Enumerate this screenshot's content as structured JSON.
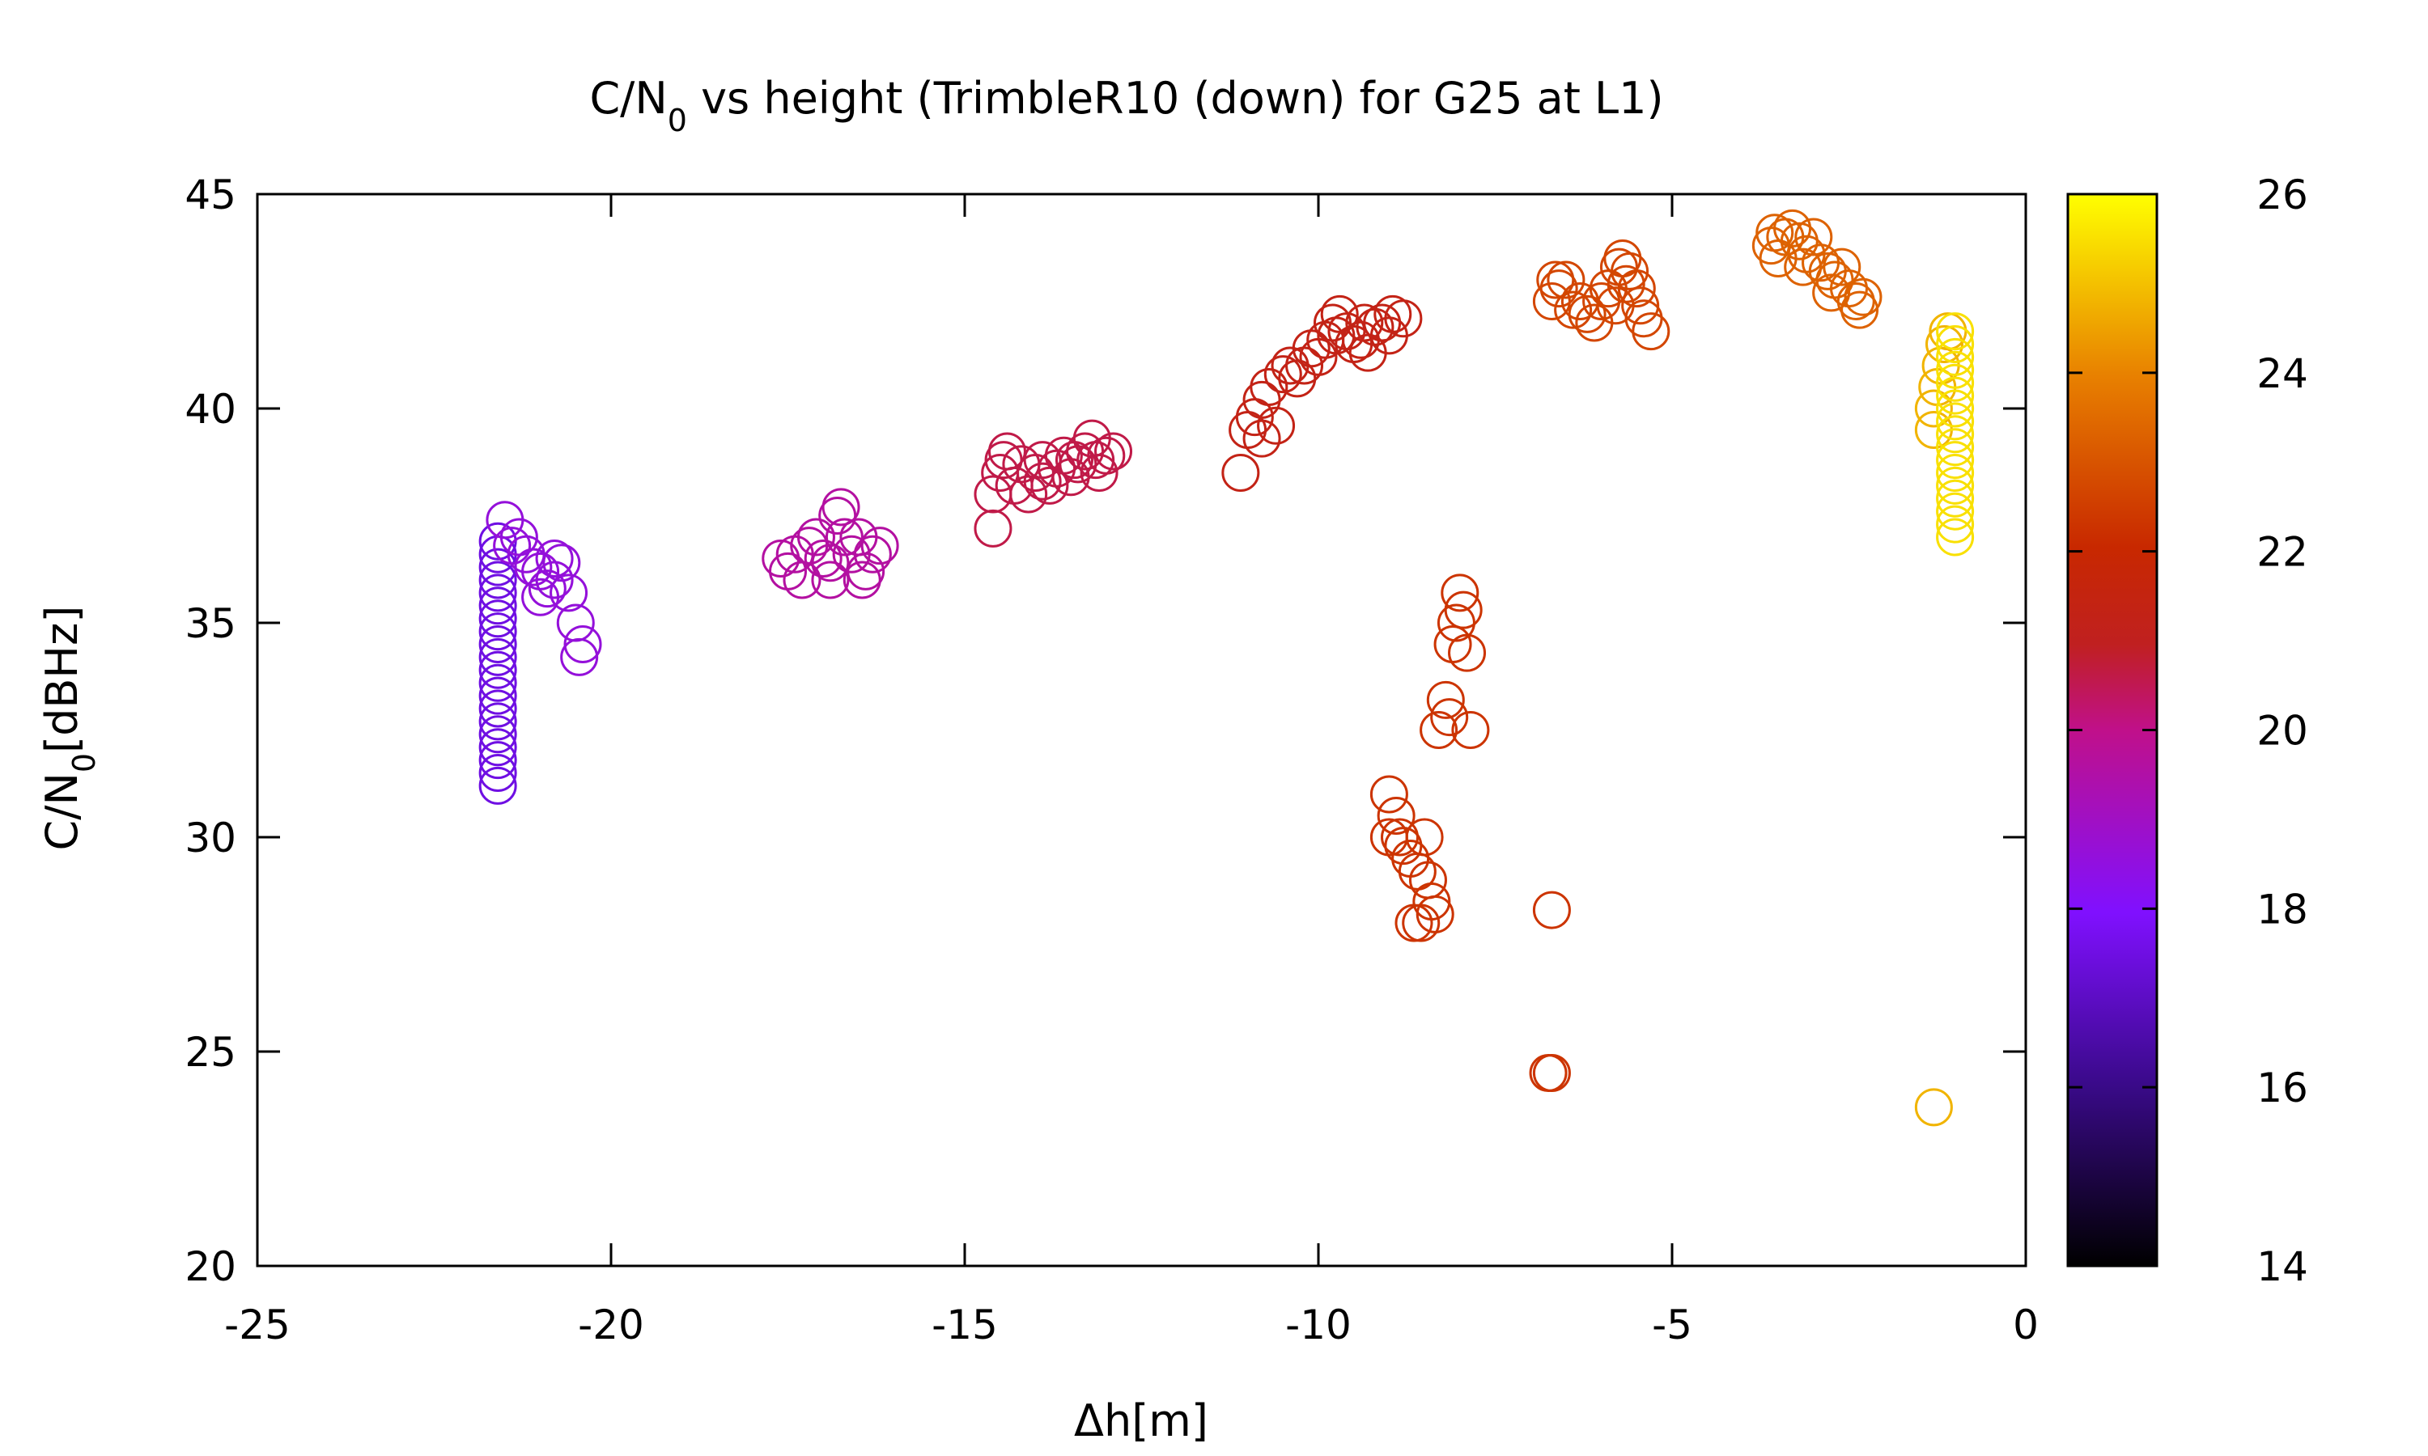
{
  "chart_data": {
    "type": "scatter",
    "title": {
      "main": "C/N",
      "sub": "0",
      "rest": " vs height (TrimbleR10 (down) for G25 at L1)"
    },
    "xlabel": "Δh[m]",
    "ylabel": {
      "main": "C/N",
      "sub": "0",
      "rest": "[dBHz]"
    },
    "xlim": [
      -25,
      0
    ],
    "ylim": [
      20,
      45
    ],
    "xticks": [
      -25,
      -20,
      -15,
      -10,
      -5,
      0
    ],
    "yticks": [
      20,
      25,
      30,
      35,
      40,
      45
    ],
    "colorbar": {
      "range": [
        14,
        26
      ],
      "ticks": [
        14,
        16,
        18,
        20,
        22,
        24,
        26
      ],
      "palette": "black-purple-red-orange-yellow"
    },
    "marker": "open-circle",
    "grid": false,
    "clusters": [
      {
        "color_value": 17.5,
        "points": [
          [
            -21.6,
            31.2
          ],
          [
            -21.6,
            31.5
          ],
          [
            -21.6,
            31.8
          ],
          [
            -21.6,
            32.1
          ],
          [
            -21.6,
            32.4
          ],
          [
            -21.6,
            32.7
          ],
          [
            -21.6,
            33.0
          ],
          [
            -21.6,
            33.3
          ],
          [
            -21.6,
            33.6
          ],
          [
            -21.6,
            33.9
          ],
          [
            -21.6,
            34.2
          ],
          [
            -21.6,
            34.5
          ],
          [
            -21.6,
            34.8
          ],
          [
            -21.6,
            35.1
          ],
          [
            -21.6,
            35.4
          ],
          [
            -21.6,
            35.7
          ],
          [
            -21.6,
            36.0
          ],
          [
            -21.6,
            36.3
          ],
          [
            -21.6,
            36.6
          ],
          [
            -21.6,
            36.9
          ]
        ]
      },
      {
        "color_value": 18.6,
        "points": [
          [
            -21.5,
            37.4
          ],
          [
            -21.3,
            37.0
          ],
          [
            -21.2,
            36.6
          ],
          [
            -21.0,
            36.2
          ],
          [
            -20.9,
            35.8
          ],
          [
            -20.8,
            36.0
          ],
          [
            -20.7,
            36.4
          ],
          [
            -20.6,
            35.7
          ],
          [
            -20.5,
            35.0
          ],
          [
            -20.4,
            34.5
          ],
          [
            -20.45,
            34.2
          ],
          [
            -21.4,
            36.8
          ],
          [
            -21.1,
            36.3
          ],
          [
            -21.0,
            35.6
          ],
          [
            -20.8,
            36.5
          ]
        ]
      },
      {
        "color_value": 19.6,
        "points": [
          [
            -17.6,
            36.5
          ],
          [
            -17.5,
            36.2
          ],
          [
            -17.3,
            36.0
          ],
          [
            -17.2,
            36.8
          ],
          [
            -17.0,
            36.5
          ],
          [
            -16.9,
            36.0
          ],
          [
            -16.8,
            37.5
          ],
          [
            -16.75,
            37.7
          ],
          [
            -16.7,
            37.0
          ],
          [
            -16.6,
            36.6
          ],
          [
            -16.5,
            37.0
          ],
          [
            -16.4,
            36.2
          ],
          [
            -16.3,
            36.6
          ],
          [
            -16.2,
            36.8
          ],
          [
            -17.4,
            36.6
          ],
          [
            -17.1,
            37.0
          ],
          [
            -16.9,
            36.4
          ],
          [
            -16.45,
            36.0
          ]
        ]
      },
      {
        "color_value": 20.6,
        "points": [
          [
            -14.6,
            37.2
          ],
          [
            -14.6,
            38.0
          ],
          [
            -14.5,
            38.5
          ],
          [
            -14.4,
            39.0
          ],
          [
            -14.3,
            38.2
          ],
          [
            -14.2,
            38.7
          ],
          [
            -14.1,
            38.0
          ],
          [
            -14.0,
            38.5
          ],
          [
            -13.9,
            38.8
          ],
          [
            -13.8,
            38.2
          ],
          [
            -13.7,
            38.6
          ],
          [
            -13.6,
            38.9
          ],
          [
            -13.5,
            38.4
          ],
          [
            -13.4,
            38.7
          ],
          [
            -13.3,
            39.0
          ],
          [
            -13.2,
            39.3
          ],
          [
            -13.1,
            38.5
          ],
          [
            -13.0,
            38.9
          ],
          [
            -12.9,
            39.0
          ],
          [
            -14.45,
            38.8
          ],
          [
            -13.9,
            38.3
          ],
          [
            -13.45,
            38.8
          ],
          [
            -13.15,
            38.8
          ]
        ]
      },
      {
        "color_value": 21.3,
        "points": [
          [
            -11.1,
            38.5
          ],
          [
            -11.0,
            39.5
          ],
          [
            -10.9,
            39.8
          ],
          [
            -10.8,
            40.2
          ],
          [
            -10.7,
            40.5
          ],
          [
            -10.8,
            39.3
          ],
          [
            -10.6,
            39.6
          ],
          [
            -10.5,
            40.8
          ],
          [
            -10.4,
            41.0
          ],
          [
            -10.3,
            40.7
          ],
          [
            -10.2,
            41.0
          ],
          [
            -10.1,
            41.4
          ],
          [
            -10.0,
            41.2
          ],
          [
            -9.9,
            41.6
          ],
          [
            -9.8,
            42.0
          ],
          [
            -9.7,
            42.2
          ],
          [
            -9.6,
            41.8
          ],
          [
            -9.5,
            41.5
          ],
          [
            -9.4,
            41.6
          ],
          [
            -9.3,
            41.3
          ],
          [
            -9.2,
            41.9
          ],
          [
            -9.1,
            42.0
          ],
          [
            -9.0,
            41.7
          ],
          [
            -8.95,
            42.2
          ],
          [
            -8.8,
            42.1
          ],
          [
            -9.75,
            41.7
          ],
          [
            -9.35,
            42.0
          ]
        ]
      },
      {
        "color_value": 22.3,
        "points": [
          [
            -8.0,
            35.7
          ],
          [
            -7.95,
            35.3
          ],
          [
            -8.05,
            35.0
          ],
          [
            -8.1,
            34.5
          ],
          [
            -7.9,
            34.3
          ],
          [
            -8.2,
            33.2
          ],
          [
            -8.15,
            32.8
          ],
          [
            -8.3,
            32.5
          ],
          [
            -7.85,
            32.5
          ],
          [
            -9.0,
            31.0
          ],
          [
            -8.9,
            30.5
          ],
          [
            -9.0,
            30.0
          ],
          [
            -8.8,
            29.8
          ],
          [
            -8.7,
            29.5
          ],
          [
            -8.6,
            29.2
          ],
          [
            -8.5,
            30.0
          ],
          [
            -8.45,
            29.0
          ],
          [
            -8.4,
            28.5
          ],
          [
            -8.35,
            28.2
          ],
          [
            -8.55,
            28.0
          ],
          [
            -8.65,
            28.0
          ],
          [
            -8.85,
            30.0
          ],
          [
            -6.7,
            28.3
          ],
          [
            -6.75,
            24.5
          ],
          [
            -6.7,
            24.5
          ]
        ]
      },
      {
        "color_value": 22.7,
        "points": [
          [
            -6.7,
            42.5
          ],
          [
            -6.6,
            42.8
          ],
          [
            -6.5,
            43.0
          ],
          [
            -6.4,
            42.3
          ],
          [
            -6.3,
            42.5
          ],
          [
            -6.2,
            42.2
          ],
          [
            -6.1,
            42.0
          ],
          [
            -6.0,
            42.5
          ],
          [
            -5.9,
            42.8
          ],
          [
            -5.8,
            42.4
          ],
          [
            -5.7,
            43.5
          ],
          [
            -5.6,
            43.2
          ],
          [
            -5.5,
            42.8
          ],
          [
            -5.45,
            42.4
          ],
          [
            -5.4,
            42.1
          ],
          [
            -5.3,
            41.8
          ],
          [
            -6.65,
            43.0
          ],
          [
            -5.75,
            43.3
          ],
          [
            -5.65,
            42.9
          ]
        ]
      },
      {
        "color_value": 23.3,
        "points": [
          [
            -3.6,
            43.8
          ],
          [
            -3.5,
            43.5
          ],
          [
            -3.4,
            44.0
          ],
          [
            -3.3,
            44.2
          ],
          [
            -3.2,
            43.9
          ],
          [
            -3.1,
            43.6
          ],
          [
            -3.0,
            44.0
          ],
          [
            -2.9,
            43.4
          ],
          [
            -2.8,
            43.2
          ],
          [
            -2.7,
            43.0
          ],
          [
            -2.6,
            43.3
          ],
          [
            -2.5,
            42.8
          ],
          [
            -2.4,
            42.5
          ],
          [
            -2.35,
            42.3
          ],
          [
            -2.3,
            42.6
          ],
          [
            -3.55,
            44.1
          ],
          [
            -3.15,
            43.3
          ],
          [
            -2.75,
            42.7
          ]
        ]
      },
      {
        "color_value": 24.8,
        "points": [
          [
            -1.3,
            23.7
          ],
          [
            -1.3,
            40.0
          ],
          [
            -1.25,
            40.5
          ],
          [
            -1.2,
            41.0
          ],
          [
            -1.15,
            41.5
          ],
          [
            -1.1,
            41.8
          ],
          [
            -1.3,
            39.5
          ]
        ]
      },
      {
        "color_value": 25.5,
        "points": [
          [
            -1.0,
            37.0
          ],
          [
            -1.0,
            37.3
          ],
          [
            -1.0,
            37.6
          ],
          [
            -1.0,
            37.9
          ],
          [
            -1.0,
            38.2
          ],
          [
            -1.0,
            38.5
          ],
          [
            -1.0,
            38.8
          ],
          [
            -1.0,
            39.1
          ],
          [
            -1.0,
            39.4
          ],
          [
            -1.0,
            39.7
          ],
          [
            -1.0,
            40.0
          ],
          [
            -1.0,
            40.3
          ],
          [
            -1.0,
            40.6
          ],
          [
            -1.0,
            40.9
          ],
          [
            -1.0,
            41.2
          ],
          [
            -1.0,
            41.5
          ],
          [
            -1.0,
            41.8
          ]
        ]
      }
    ]
  }
}
